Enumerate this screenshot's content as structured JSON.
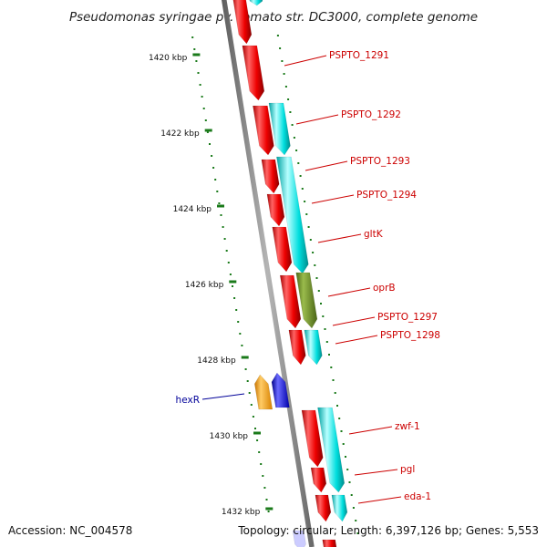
{
  "title": "Pseudomonas syringae pv. tomato str. DC3000, complete genome",
  "accession": "Accession: NC_004578",
  "summary": "Topology: circular; Length: 6,397,126 bp; Genes: 5,553",
  "ticks": [
    "1420 kbp",
    "1422 kbp",
    "1424 kbp",
    "1426 kbp",
    "1428 kbp",
    "1430 kbp",
    "1432 kbp"
  ],
  "genes": [
    {
      "label": "PSPTO_1291"
    },
    {
      "label": "PSPTO_1292"
    },
    {
      "label": "PSPTO_1293"
    },
    {
      "label": "PSPTO_1294"
    },
    {
      "label": "gltK"
    },
    {
      "label": "oprB"
    },
    {
      "label": "PSPTO_1297"
    },
    {
      "label": "PSPTO_1298"
    },
    {
      "label": "hexR"
    },
    {
      "label": "zwf-1"
    },
    {
      "label": "pgl"
    },
    {
      "label": "eda-1"
    }
  ],
  "colors": {
    "cds": "#ff0000",
    "gene": "#00cccc",
    "oprB_feature": "#6b8e23",
    "hexR_cds": "#ff9900",
    "hexR_gene": "#0000ff",
    "backbone": "#8c8c8c",
    "tick_mark": "#1a7a1a",
    "label_forward": "#cc0000",
    "label_reverse": "#000099"
  }
}
